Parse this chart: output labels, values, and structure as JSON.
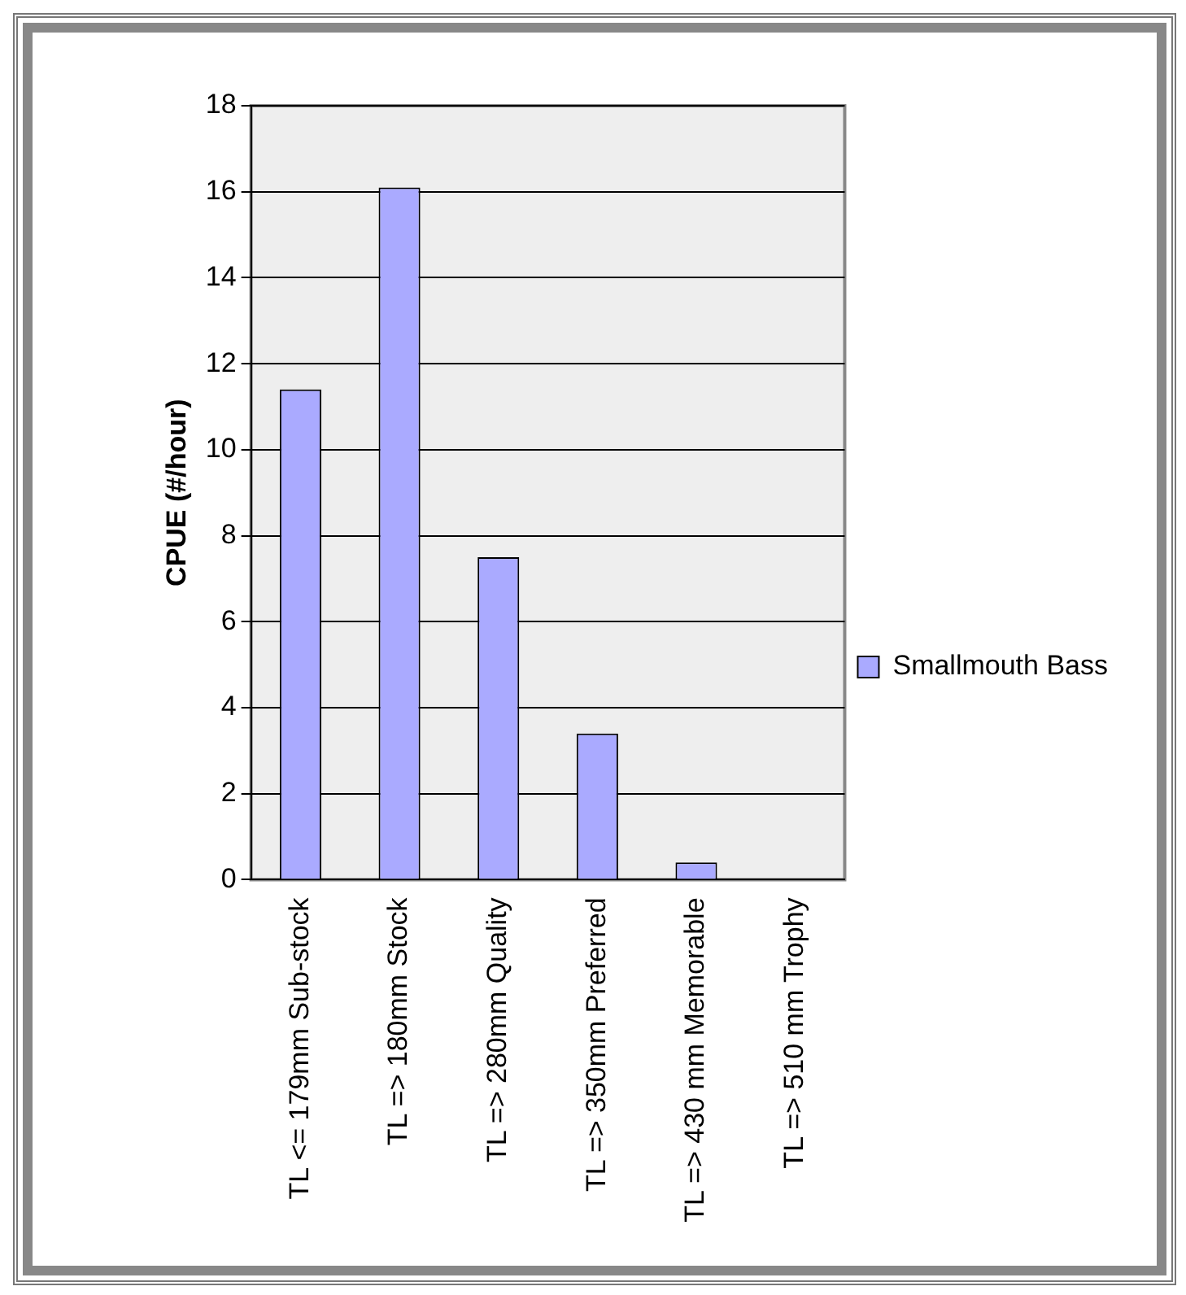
{
  "chart_data": {
    "type": "bar",
    "ylabel": "CPUE (#/hour)",
    "categories": [
      "TL <= 179mm Sub-stock",
      "TL => 180mm Stock",
      "TL => 280mm Quality",
      "TL => 350mm Preferred",
      "TL => 430 mm Memorable",
      "TL => 510 mm Trophy"
    ],
    "series": [
      {
        "name": "Smallmouth Bass",
        "color": "#aaaaff",
        "values": [
          11.4,
          16.1,
          7.5,
          3.4,
          0.4,
          0
        ]
      }
    ],
    "ylim": [
      0,
      18
    ],
    "yticks": [
      0,
      2,
      4,
      6,
      8,
      10,
      12,
      14,
      16,
      18
    ],
    "grid": "y",
    "legend": "right"
  }
}
